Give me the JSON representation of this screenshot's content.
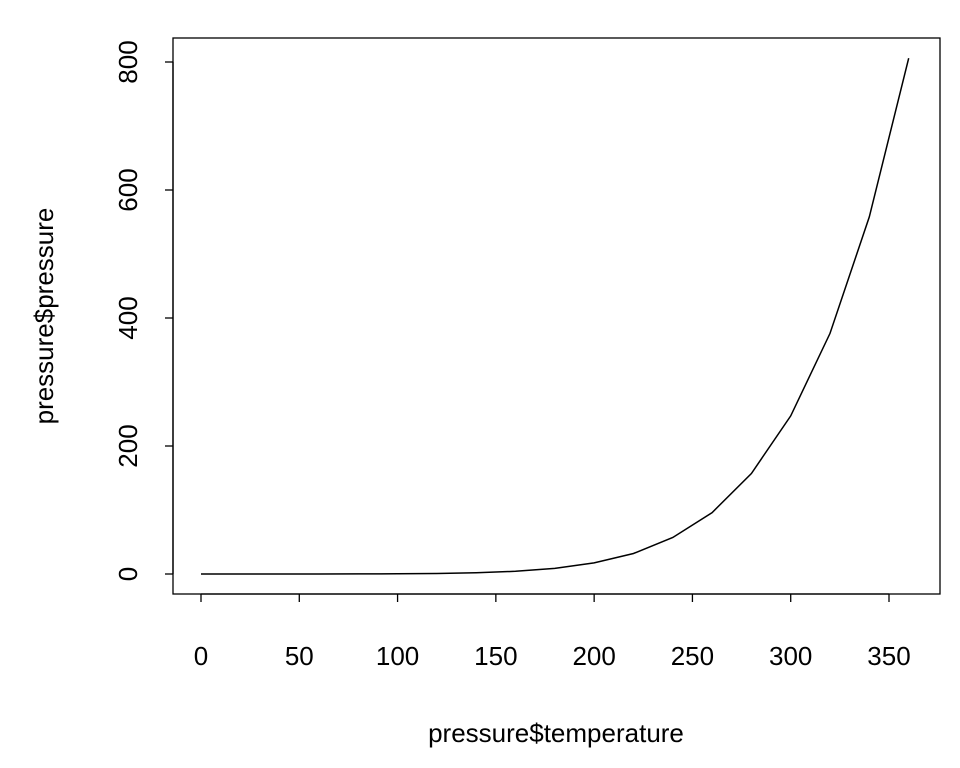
{
  "chart_data": {
    "type": "line",
    "title": "",
    "xlabel": "pressure$temperature",
    "ylabel": "pressure$pressure",
    "x": [
      0,
      20,
      40,
      60,
      80,
      100,
      120,
      140,
      160,
      180,
      200,
      220,
      240,
      260,
      280,
      300,
      320,
      340,
      360
    ],
    "series": [
      {
        "values": [
          0.0002,
          0.0012,
          0.006,
          0.03,
          0.09,
          0.27,
          0.75,
          1.85,
          4.2,
          8.8,
          17.3,
          32.1,
          57,
          96,
          157,
          247,
          376,
          558,
          806
        ]
      }
    ],
    "xticks": [
      "0",
      "50",
      "100",
      "150",
      "200",
      "250",
      "300",
      "350"
    ],
    "yticks": [
      "0",
      "200",
      "400",
      "600",
      "800"
    ],
    "xlim": [
      -14.4,
      374.4
    ],
    "ylim": [
      -32.2,
      838.2
    ],
    "grid": false,
    "line_color": "#000000"
  }
}
